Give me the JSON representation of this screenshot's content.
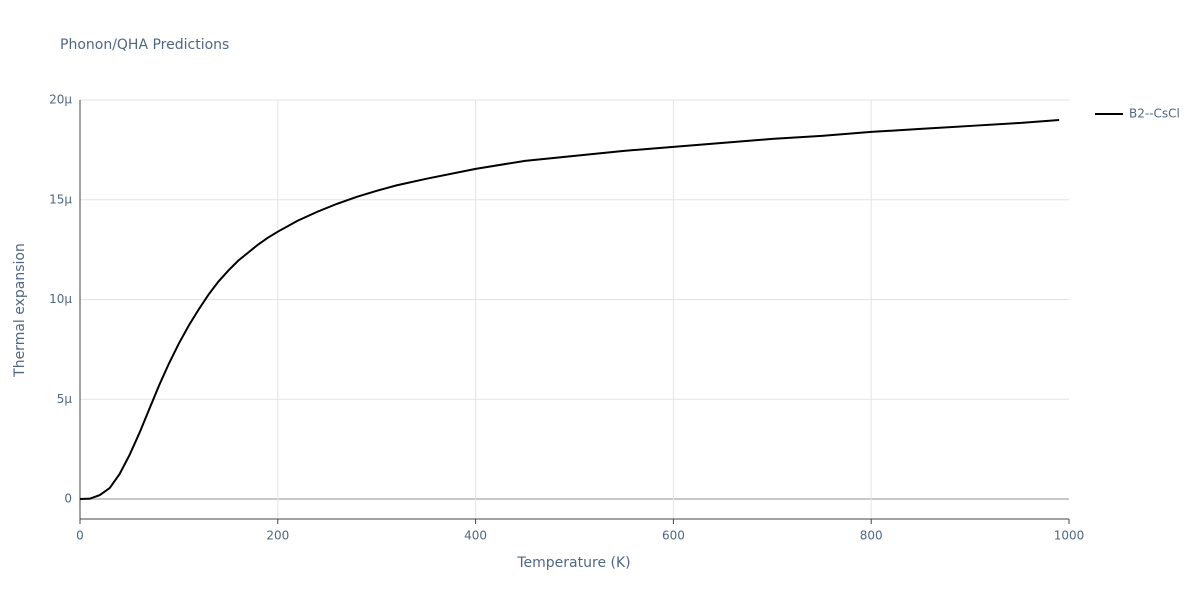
{
  "chart_data": {
    "type": "line",
    "title": "Phonon/QHA Predictions",
    "xlabel": "Temperature (K)",
    "ylabel": "Thermal expansion",
    "x": [
      0,
      10,
      20,
      30,
      40,
      50,
      60,
      70,
      80,
      90,
      100,
      110,
      120,
      130,
      140,
      150,
      160,
      170,
      180,
      190,
      200,
      220,
      240,
      260,
      280,
      300,
      320,
      350,
      400,
      450,
      500,
      550,
      600,
      650,
      700,
      750,
      800,
      850,
      900,
      950,
      990
    ],
    "series": [
      {
        "name": "B2--CsCl",
        "color": "#000000",
        "values": [
          0,
          2e-08,
          2e-07,
          5.5e-07,
          1.25e-06,
          2.2e-06,
          3.3e-06,
          4.5e-06,
          5.7e-06,
          6.8e-06,
          7.8e-06,
          8.7e-06,
          9.5e-06,
          1.025e-05,
          1.09e-05,
          1.145e-05,
          1.195e-05,
          1.235e-05,
          1.275e-05,
          1.31e-05,
          1.34e-05,
          1.395e-05,
          1.44e-05,
          1.48e-05,
          1.515e-05,
          1.545e-05,
          1.572e-05,
          1.605e-05,
          1.655e-05,
          1.695e-05,
          1.72e-05,
          1.745e-05,
          1.765e-05,
          1.785e-05,
          1.805e-05,
          1.82e-05,
          1.84e-05,
          1.855e-05,
          1.87e-05,
          1.885e-05,
          1.9e-05
        ]
      }
    ],
    "xlim": [
      0,
      1000
    ],
    "xticks": [
      0,
      200,
      400,
      600,
      800,
      1000
    ],
    "ylim": [
      -1e-06,
      2e-05
    ],
    "yticks": [
      0,
      {
        "value": 5e-06,
        "label": "5μ"
      },
      {
        "value": 1e-05,
        "label": "10μ"
      },
      {
        "value": 1.5e-05,
        "label": "15μ"
      },
      {
        "value": 2e-05,
        "label": "20μ"
      }
    ],
    "grid": true,
    "legend": "right"
  }
}
